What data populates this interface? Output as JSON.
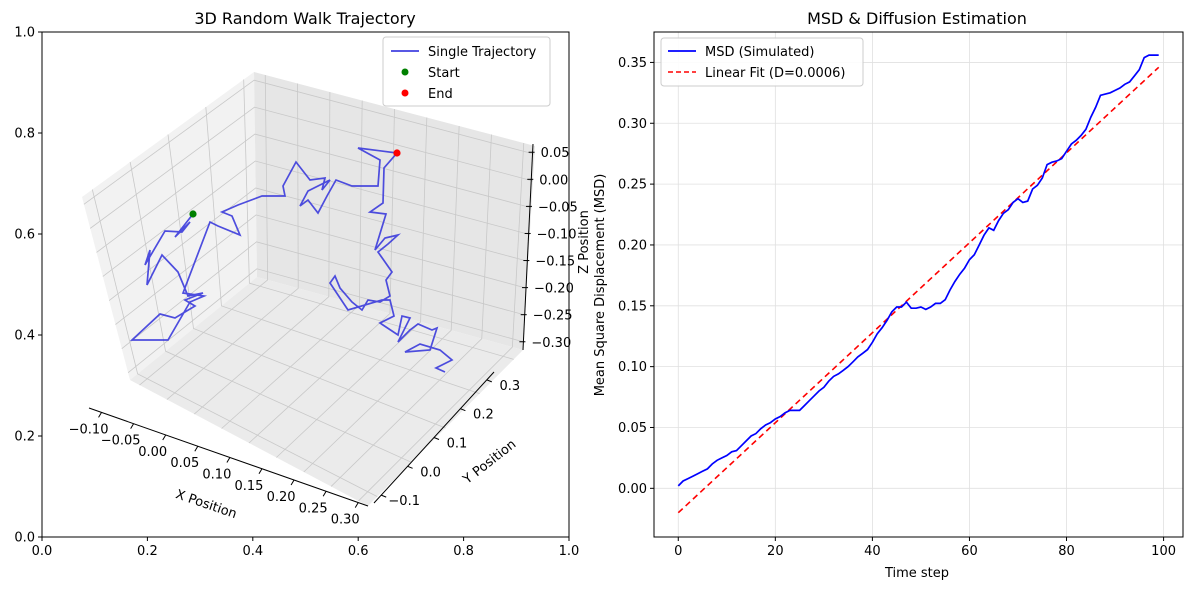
{
  "chart_data": [
    {
      "type": "line3d",
      "title": "3D Random Walk Trajectory",
      "xlabel": "X Position",
      "ylabel": "Y Position",
      "zlabel": "Z Position",
      "outer_axes": {
        "xlim": [
          0,
          1
        ],
        "ylim": [
          0,
          1
        ],
        "xticks": [
          "0.0",
          "0.2",
          "0.4",
          "0.6",
          "0.8",
          "1.0"
        ],
        "yticks": [
          "0.0",
          "0.2",
          "0.4",
          "0.6",
          "0.8",
          "1.0"
        ]
      },
      "x_ticks": [
        "−0.10",
        "−0.05",
        "0.00",
        "0.05",
        "0.10",
        "0.15",
        "0.20",
        "0.25",
        "0.30"
      ],
      "y_ticks": [
        "−0.1",
        "0.0",
        "0.1",
        "0.2",
        "0.3"
      ],
      "z_ticks": [
        "0.05",
        "0.00",
        "−0.05",
        "−0.10",
        "−0.15",
        "−0.20",
        "−0.25",
        "−0.30"
      ],
      "legend": {
        "position": "upper right",
        "entries": [
          {
            "label": "Single Trajectory",
            "color": "#4040e0",
            "marker": "line"
          },
          {
            "label": "Start",
            "color": "#008000",
            "marker": "dot"
          },
          {
            "label": "End",
            "color": "#ff0000",
            "marker": "dot"
          }
        ]
      },
      "grid": true
    },
    {
      "type": "line",
      "title": "MSD & Diffusion Estimation",
      "xlabel": "Time step",
      "ylabel": "Mean Square Displacement (MSD)",
      "xlim": [
        -5,
        104
      ],
      "ylim": [
        -0.04,
        0.375
      ],
      "xticks": [
        0,
        20,
        40,
        60,
        80,
        100
      ],
      "yticks": [
        0.0,
        0.05,
        0.1,
        0.15,
        0.2,
        0.25,
        0.3,
        0.35
      ],
      "ytick_labels": [
        "0.00",
        "0.05",
        "0.10",
        "0.15",
        "0.20",
        "0.25",
        "0.30",
        "0.35"
      ],
      "grid": true,
      "legend": {
        "position": "upper left",
        "entries": [
          {
            "label": "MSD (Simulated)",
            "color": "#0000ff",
            "style": "solid"
          },
          {
            "label": "Linear Fit (D=0.0006)",
            "color": "#ff0000",
            "style": "dashed"
          }
        ]
      },
      "series": [
        {
          "name": "MSD (Simulated)",
          "color": "#0000ff",
          "x": [
            0,
            1,
            2,
            3,
            4,
            5,
            6,
            7,
            8,
            9,
            10,
            11,
            12,
            13,
            14,
            15,
            16,
            17,
            18,
            19,
            20,
            21,
            22,
            23,
            24,
            25,
            26,
            27,
            28,
            29,
            30,
            31,
            32,
            33,
            34,
            35,
            36,
            37,
            38,
            39,
            40,
            41,
            42,
            43,
            44,
            45,
            46,
            47,
            48,
            49,
            50,
            51,
            52,
            53,
            54,
            55,
            56,
            57,
            58,
            59,
            60,
            61,
            62,
            63,
            64,
            65,
            66,
            67,
            68,
            69,
            70,
            71,
            72,
            73,
            74,
            75,
            76,
            77,
            78,
            79,
            80,
            81,
            82,
            83,
            84,
            85,
            86,
            87,
            88,
            89,
            90,
            91,
            92,
            93,
            94,
            95,
            96,
            97,
            98,
            99
          ],
          "y": [
            0.002,
            0.006,
            0.008,
            0.01,
            0.012,
            0.014,
            0.016,
            0.02,
            0.023,
            0.025,
            0.027,
            0.03,
            0.031,
            0.035,
            0.039,
            0.043,
            0.045,
            0.049,
            0.052,
            0.054,
            0.057,
            0.059,
            0.062,
            0.064,
            0.064,
            0.064,
            0.068,
            0.072,
            0.076,
            0.08,
            0.083,
            0.088,
            0.092,
            0.094,
            0.097,
            0.1,
            0.104,
            0.108,
            0.111,
            0.114,
            0.12,
            0.127,
            0.132,
            0.138,
            0.145,
            0.149,
            0.149,
            0.153,
            0.148,
            0.148,
            0.149,
            0.147,
            0.149,
            0.152,
            0.152,
            0.155,
            0.163,
            0.17,
            0.176,
            0.181,
            0.188,
            0.192,
            0.2,
            0.208,
            0.214,
            0.212,
            0.22,
            0.226,
            0.229,
            0.235,
            0.238,
            0.235,
            0.236,
            0.246,
            0.249,
            0.255,
            0.266,
            0.268,
            0.269,
            0.271,
            0.277,
            0.283,
            0.286,
            0.29,
            0.295,
            0.305,
            0.313,
            0.323,
            0.324,
            0.325,
            0.327,
            0.329,
            0.332,
            0.334,
            0.339,
            0.344,
            0.354,
            0.356,
            0.356,
            0.356
          ]
        },
        {
          "name": "Linear Fit (D=0.0006)",
          "color": "#ff0000",
          "dashed": true,
          "x": [
            0,
            99
          ],
          "y": [
            -0.02,
            0.346
          ]
        }
      ]
    }
  ]
}
